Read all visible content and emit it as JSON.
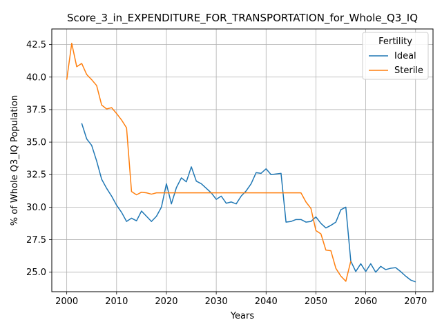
{
  "chart_data": {
    "type": "line",
    "title": "Score_3_in_EXPENDITURE_FOR_TRANSPORTATION_for_Whole_Q3_IQ",
    "xlabel": "Years",
    "ylabel": "% of Whole Q3_IQ Population",
    "xlim": [
      1997,
      2073.5
    ],
    "ylim": [
      23.5,
      43.7
    ],
    "xticks": [
      2000,
      2010,
      2020,
      2030,
      2040,
      2050,
      2060,
      2070
    ],
    "xtick_labels": [
      "2000",
      "2010",
      "2020",
      "2030",
      "2040",
      "2050",
      "2060",
      "2070"
    ],
    "yticks": [
      25.0,
      27.5,
      30.0,
      32.5,
      35.0,
      37.5,
      40.0,
      42.5
    ],
    "ytick_labels": [
      "25.0",
      "27.5",
      "30.0",
      "32.5",
      "35.0",
      "37.5",
      "40.0",
      "42.5"
    ],
    "grid": true,
    "legend": {
      "title": "Fertility",
      "position": "top-right"
    },
    "series": [
      {
        "name": "Ideal",
        "color": "#1f77b4",
        "x": [
          2003,
          2004,
          2005,
          2006,
          2007,
          2008,
          2009,
          2010,
          2011,
          2012,
          2013,
          2014,
          2015,
          2016,
          2017,
          2018,
          2019,
          2020,
          2021,
          2022,
          2023,
          2024,
          2025,
          2026,
          2027,
          2028,
          2029,
          2030,
          2031,
          2032,
          2033,
          2034,
          2035,
          2036,
          2037,
          2038,
          2039,
          2040,
          2041,
          2042,
          2043,
          2044,
          2045,
          2046,
          2047,
          2048,
          2049,
          2050,
          2051,
          2052,
          2053,
          2054,
          2055,
          2056,
          2057,
          2058,
          2059,
          2060,
          2061,
          2062,
          2063,
          2064,
          2065,
          2066,
          2067,
          2068,
          2069,
          2070
        ],
        "values": [
          36.45,
          35.25,
          34.75,
          33.55,
          32.15,
          31.45,
          30.85,
          30.15,
          29.6,
          28.9,
          29.15,
          28.95,
          29.7,
          29.3,
          28.9,
          29.3,
          30.0,
          31.8,
          30.25,
          31.5,
          32.25,
          31.95,
          33.1,
          32.0,
          31.8,
          31.45,
          31.1,
          30.6,
          30.85,
          30.3,
          30.4,
          30.25,
          30.85,
          31.25,
          31.8,
          32.65,
          32.6,
          32.95,
          32.5,
          32.55,
          32.6,
          28.85,
          28.9,
          29.05,
          29.05,
          28.85,
          28.9,
          29.25,
          28.75,
          28.4,
          28.6,
          28.85,
          29.8,
          30.0,
          25.85,
          25.05,
          25.65,
          25.05,
          25.65,
          25.0,
          25.45,
          25.2,
          25.3,
          25.35,
          25.05,
          24.7,
          24.4,
          24.25
        ]
      },
      {
        "name": "Sterile",
        "color": "#ff7f0e",
        "x": [
          2000,
          2001,
          2002,
          2003,
          2004,
          2005,
          2006,
          2007,
          2008,
          2009,
          2010,
          2011,
          2012,
          2013,
          2014,
          2015,
          2016,
          2017,
          2018,
          2019,
          2020,
          2021,
          2022,
          2023,
          2024,
          2025,
          2026,
          2027,
          2028,
          2029,
          2030,
          2031,
          2032,
          2033,
          2034,
          2035,
          2036,
          2037,
          2038,
          2039,
          2040,
          2041,
          2042,
          2043,
          2044,
          2045,
          2046,
          2047,
          2048,
          2049,
          2050,
          2051,
          2052,
          2053,
          2054,
          2055,
          2056,
          2057
        ],
        "values": [
          39.8,
          42.6,
          40.8,
          41.05,
          40.2,
          39.8,
          39.35,
          37.85,
          37.55,
          37.65,
          37.2,
          36.7,
          36.1,
          31.2,
          30.95,
          31.15,
          31.1,
          31.0,
          31.1,
          31.1,
          31.1,
          31.1,
          31.1,
          31.1,
          31.1,
          31.1,
          31.1,
          31.1,
          31.1,
          31.1,
          31.1,
          31.1,
          31.1,
          31.1,
          31.1,
          31.1,
          31.1,
          31.1,
          31.1,
          31.1,
          31.1,
          31.1,
          31.1,
          31.1,
          31.1,
          31.1,
          31.1,
          31.1,
          30.4,
          29.9,
          28.2,
          27.95,
          26.7,
          26.65,
          25.3,
          24.7,
          24.3,
          25.85
        ]
      }
    ]
  }
}
